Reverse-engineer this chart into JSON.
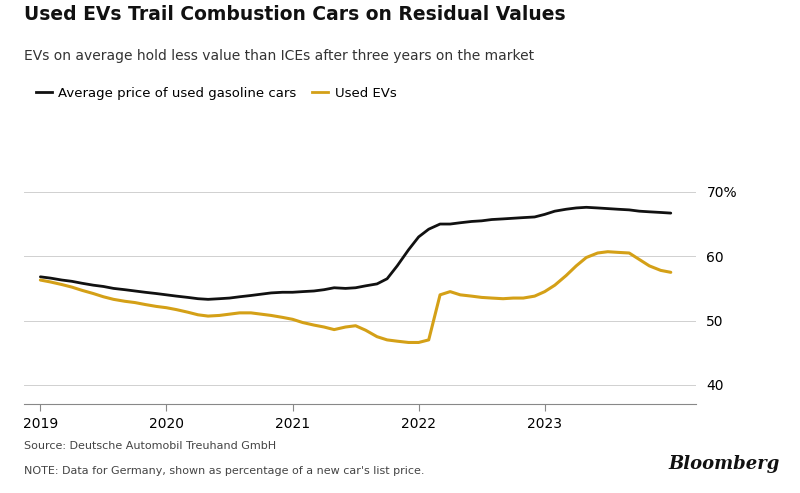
{
  "title": "Used EVs Trail Combustion Cars on Residual Values",
  "subtitle": "EVs on average hold less value than ICEs after three years on the market",
  "legend_gasoline": "Average price of used gasoline cars",
  "legend_ev": "Used EVs",
  "source_line1": "Source: Deutsche Automobil Treuhand GmbH",
  "source_line2": "NOTE: Data for Germany, shown as percentage of a new car's list price.",
  "bloomberg_text": "Bloomberg",
  "ylim": [
    37,
    73
  ],
  "background_color": "#ffffff",
  "gasoline_color": "#111111",
  "ev_color": "#d4a017",
  "gasoline_data": {
    "x": [
      2019.0,
      2019.08,
      2019.17,
      2019.25,
      2019.33,
      2019.42,
      2019.5,
      2019.58,
      2019.67,
      2019.75,
      2019.83,
      2019.92,
      2020.0,
      2020.08,
      2020.17,
      2020.25,
      2020.33,
      2020.42,
      2020.5,
      2020.58,
      2020.67,
      2020.75,
      2020.83,
      2020.92,
      2021.0,
      2021.08,
      2021.17,
      2021.25,
      2021.33,
      2021.42,
      2021.5,
      2021.58,
      2021.67,
      2021.75,
      2021.83,
      2021.92,
      2022.0,
      2022.08,
      2022.17,
      2022.25,
      2022.33,
      2022.42,
      2022.5,
      2022.58,
      2022.67,
      2022.75,
      2022.83,
      2022.92,
      2023.0,
      2023.08,
      2023.17,
      2023.25,
      2023.33,
      2023.42,
      2023.5,
      2023.58,
      2023.67,
      2023.75,
      2023.83,
      2023.92,
      2024.0
    ],
    "y": [
      56.8,
      56.6,
      56.3,
      56.1,
      55.8,
      55.5,
      55.3,
      55.0,
      54.8,
      54.6,
      54.4,
      54.2,
      54.0,
      53.8,
      53.6,
      53.4,
      53.3,
      53.4,
      53.5,
      53.7,
      53.9,
      54.1,
      54.3,
      54.4,
      54.4,
      54.5,
      54.6,
      54.8,
      55.1,
      55.0,
      55.1,
      55.4,
      55.7,
      56.5,
      58.5,
      61.0,
      63.0,
      64.2,
      65.0,
      65.0,
      65.2,
      65.4,
      65.5,
      65.7,
      65.8,
      65.9,
      66.0,
      66.1,
      66.5,
      67.0,
      67.3,
      67.5,
      67.6,
      67.5,
      67.4,
      67.3,
      67.2,
      67.0,
      66.9,
      66.8,
      66.7
    ]
  },
  "ev_data": {
    "x": [
      2019.0,
      2019.08,
      2019.17,
      2019.25,
      2019.33,
      2019.42,
      2019.5,
      2019.58,
      2019.67,
      2019.75,
      2019.83,
      2019.92,
      2020.0,
      2020.08,
      2020.17,
      2020.25,
      2020.33,
      2020.42,
      2020.5,
      2020.58,
      2020.67,
      2020.75,
      2020.83,
      2020.92,
      2021.0,
      2021.08,
      2021.17,
      2021.25,
      2021.33,
      2021.42,
      2021.5,
      2021.58,
      2021.67,
      2021.75,
      2021.83,
      2021.92,
      2022.0,
      2022.08,
      2022.17,
      2022.25,
      2022.33,
      2022.42,
      2022.5,
      2022.58,
      2022.67,
      2022.75,
      2022.83,
      2022.92,
      2023.0,
      2023.08,
      2023.17,
      2023.25,
      2023.33,
      2023.42,
      2023.5,
      2023.58,
      2023.67,
      2023.75,
      2023.83,
      2023.92,
      2024.0
    ],
    "y": [
      56.3,
      56.0,
      55.6,
      55.2,
      54.7,
      54.2,
      53.7,
      53.3,
      53.0,
      52.8,
      52.5,
      52.2,
      52.0,
      51.7,
      51.3,
      50.9,
      50.7,
      50.8,
      51.0,
      51.2,
      51.2,
      51.0,
      50.8,
      50.5,
      50.2,
      49.7,
      49.3,
      49.0,
      48.6,
      49.0,
      49.2,
      48.5,
      47.5,
      47.0,
      46.8,
      46.6,
      46.6,
      47.0,
      54.0,
      54.5,
      54.0,
      53.8,
      53.6,
      53.5,
      53.4,
      53.5,
      53.5,
      53.8,
      54.5,
      55.5,
      57.0,
      58.5,
      59.8,
      60.5,
      60.7,
      60.6,
      60.5,
      59.5,
      58.5,
      57.8,
      57.5
    ]
  }
}
